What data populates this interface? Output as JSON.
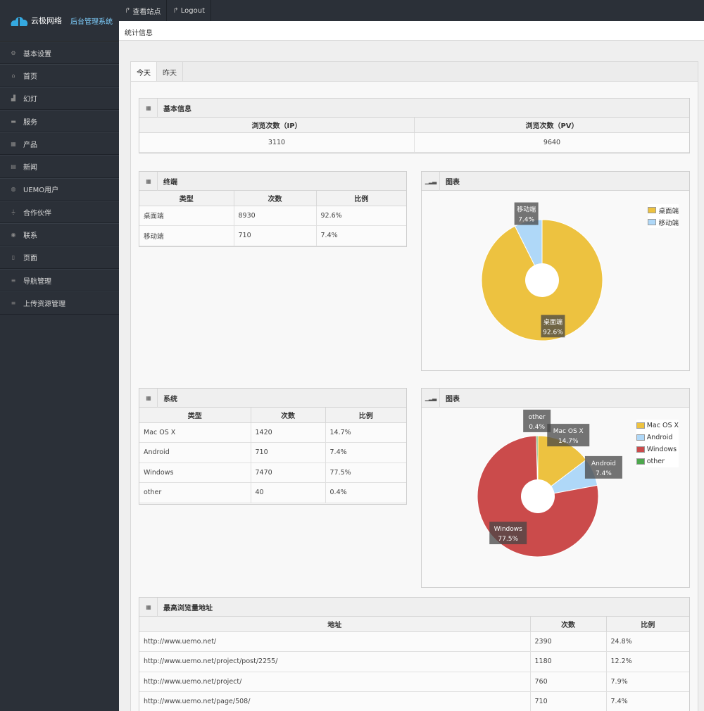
{
  "brand": {
    "name": "云极网络",
    "system": "后台管理系统"
  },
  "sidebar": {
    "items": [
      {
        "label": "基本设置",
        "icon": "gear-icon"
      },
      {
        "label": "首页",
        "icon": "home-icon"
      },
      {
        "label": "幻灯",
        "icon": "chart-area-icon"
      },
      {
        "label": "服务",
        "icon": "card-icon"
      },
      {
        "label": "产品",
        "icon": "grid-icon"
      },
      {
        "label": "新闻",
        "icon": "calendar-icon"
      },
      {
        "label": "UEMO用户",
        "icon": "users-icon"
      },
      {
        "label": "合作伙伴",
        "icon": "filter-icon"
      },
      {
        "label": "联系",
        "icon": "globe-icon"
      },
      {
        "label": "页面",
        "icon": "file-icon"
      },
      {
        "label": "导航管理",
        "icon": "list-icon"
      },
      {
        "label": "上传资源管理",
        "icon": "list-icon"
      }
    ]
  },
  "topbar": {
    "view_site": "查看站点",
    "logout": "Logout"
  },
  "breadcrumb": "统计信息",
  "tabs": [
    {
      "label": "今天"
    },
    {
      "label": "昨天"
    }
  ],
  "basic": {
    "title": "基本信息",
    "headers": [
      "浏览次数（IP）",
      "浏览次数（PV）"
    ],
    "values": [
      "3110",
      "9640"
    ]
  },
  "terminal": {
    "title": "终端",
    "headers": [
      "类型",
      "次数",
      "比例"
    ],
    "rows": [
      [
        "桌面端",
        "8930",
        "92.6%"
      ],
      [
        "移动端",
        "710",
        "7.4%"
      ]
    ]
  },
  "system": {
    "title": "系统",
    "headers": [
      "类型",
      "次数",
      "比例"
    ],
    "rows": [
      [
        "Mac OS X",
        "1420",
        "14.7%"
      ],
      [
        "Android",
        "710",
        "7.4%"
      ],
      [
        "Windows",
        "7470",
        "77.5%"
      ],
      [
        "other",
        "40",
        "0.4%"
      ]
    ]
  },
  "top_urls": {
    "title": "最高浏览量地址",
    "headers": [
      "地址",
      "次数",
      "比例"
    ],
    "rows": [
      [
        "http://www.uemo.net/",
        "2390",
        "24.8%"
      ],
      [
        "http://www.uemo.net/project/post/2255/",
        "1180",
        "12.2%"
      ],
      [
        "http://www.uemo.net/project/",
        "760",
        "7.9%"
      ],
      [
        "http://www.uemo.net/page/508/",
        "710",
        "7.4%"
      ]
    ]
  },
  "chart_data": [
    {
      "type": "pie",
      "title": "图表",
      "categories": [
        "桌面端",
        "移动端"
      ],
      "values": [
        92.6,
        7.4
      ],
      "labels": [
        "92.6%",
        "7.4%"
      ],
      "colors": [
        "#edc240",
        "#afd8f8"
      ],
      "legend": "top-right"
    },
    {
      "type": "pie",
      "title": "图表",
      "categories": [
        "Mac OS X",
        "Android",
        "Windows",
        "other"
      ],
      "values": [
        14.7,
        7.4,
        77.5,
        0.4
      ],
      "labels": [
        "14.7%",
        "7.4%",
        "77.5%",
        "0.4%"
      ],
      "colors": [
        "#edc240",
        "#afd8f8",
        "#cb4b4b",
        "#4da74d"
      ],
      "legend": "top-right"
    }
  ]
}
